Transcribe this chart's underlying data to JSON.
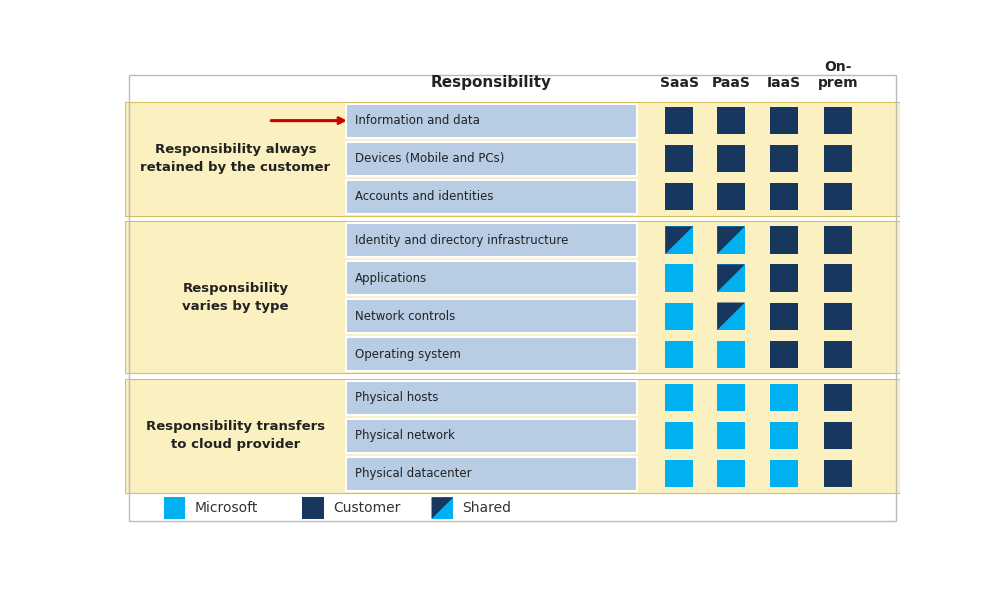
{
  "background_color": "#ffffff",
  "yellow_bg": "#faf0c0",
  "light_blue_row_bg": "#b8cce4",
  "color_microsoft": "#00b0f0",
  "color_customer": "#17375e",
  "columns": [
    "SaaS",
    "PaaS",
    "IaaS",
    "On-\nprem"
  ],
  "rows": [
    "Information and data",
    "Devices (Mobile and PCs)",
    "Accounts and identities",
    "Identity and directory infrastructure",
    "Applications",
    "Network controls",
    "Operating system",
    "Physical hosts",
    "Physical network",
    "Physical datacenter"
  ],
  "groups": [
    {
      "label": "Responsibility always\nretained by the customer",
      "rows": [
        0,
        1,
        2
      ]
    },
    {
      "label": "Responsibility\nvaries by type",
      "rows": [
        3,
        4,
        5,
        6
      ]
    },
    {
      "label": "Responsibility transfers\nto cloud provider",
      "rows": [
        7,
        8,
        9
      ]
    }
  ],
  "cells": [
    [
      "C",
      "C",
      "C",
      "C"
    ],
    [
      "C",
      "C",
      "C",
      "C"
    ],
    [
      "C",
      "C",
      "C",
      "C"
    ],
    [
      "S",
      "S",
      "C",
      "C"
    ],
    [
      "M",
      "S",
      "C",
      "C"
    ],
    [
      "M",
      "S",
      "C",
      "C"
    ],
    [
      "M",
      "M",
      "C",
      "C"
    ],
    [
      "M",
      "M",
      "M",
      "C"
    ],
    [
      "M",
      "M",
      "M",
      "C"
    ],
    [
      "M",
      "M",
      "M",
      "C"
    ]
  ],
  "responsibility_label": "Responsibility",
  "arrow_color": "#cc0000",
  "legend_microsoft": "Microsoft",
  "legend_customer": "Customer",
  "legend_shared": "Shared",
  "border_color": "#cccccc",
  "row_sep_color": "#ffffff",
  "group_sep_color": "#ffffff"
}
